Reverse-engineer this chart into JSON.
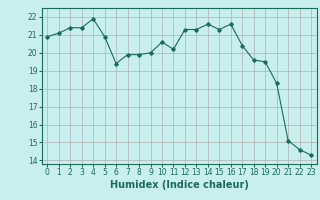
{
  "x": [
    0,
    1,
    2,
    3,
    4,
    5,
    6,
    7,
    8,
    9,
    10,
    11,
    12,
    13,
    14,
    15,
    16,
    17,
    18,
    19,
    20,
    21,
    22,
    23
  ],
  "y": [
    20.9,
    21.1,
    21.4,
    21.4,
    21.9,
    20.9,
    19.4,
    19.9,
    19.9,
    20.0,
    20.6,
    20.2,
    21.3,
    21.3,
    21.6,
    21.3,
    21.6,
    20.4,
    19.6,
    19.5,
    18.3,
    15.1,
    14.6,
    14.3
  ],
  "xlabel": "Humidex (Indice chaleur)",
  "ylim": [
    13.8,
    22.5
  ],
  "xlim": [
    -0.5,
    23.5
  ],
  "yticks": [
    14,
    15,
    16,
    17,
    18,
    19,
    20,
    21,
    22
  ],
  "xticks": [
    0,
    1,
    2,
    3,
    4,
    5,
    6,
    7,
    8,
    9,
    10,
    11,
    12,
    13,
    14,
    15,
    16,
    17,
    18,
    19,
    20,
    21,
    22,
    23
  ],
  "line_color": "#1a6b5a",
  "marker": "D",
  "marker_size": 1.8,
  "bg_color": "#c8eeee",
  "grid_color": "#b0b0b0",
  "axis_color": "#1a6b5a",
  "tick_color": "#1a6b5a",
  "label_color": "#1a6b5a",
  "font_size_tick": 5.5,
  "font_size_label": 7.0
}
